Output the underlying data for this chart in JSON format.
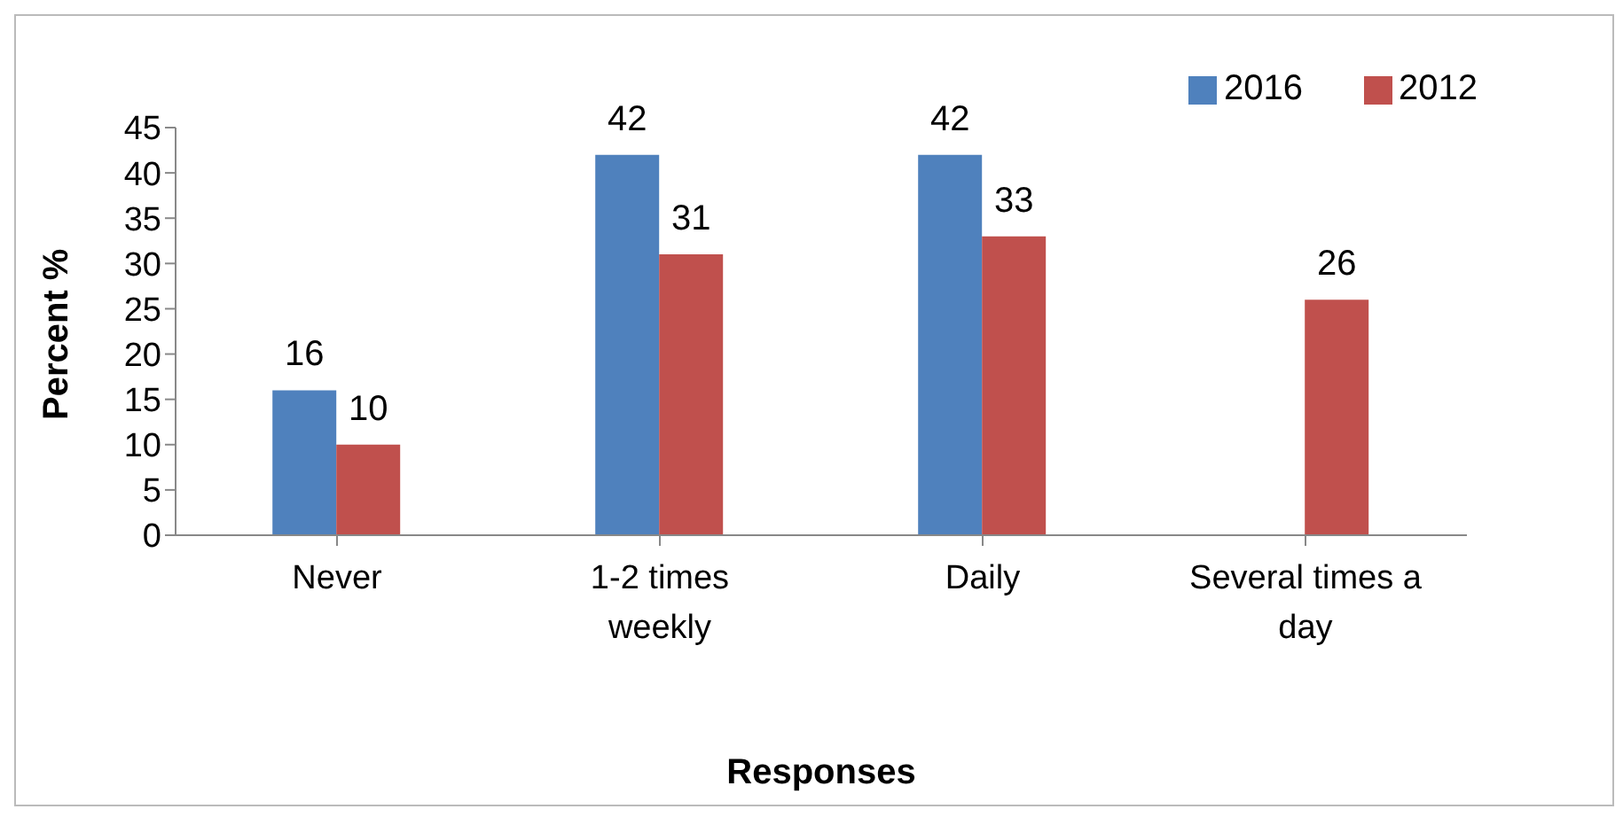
{
  "chart_data": {
    "type": "bar",
    "xlabel": "Responses",
    "ylabel": "Percent %",
    "categories": [
      "Never",
      "1-2 times weekly",
      "Daily",
      "Several times a day"
    ],
    "series": [
      {
        "name": "2016",
        "color": "#4f81bd",
        "values": [
          16,
          42,
          42,
          null
        ]
      },
      {
        "name": "2012",
        "color": "#c0504d",
        "values": [
          10,
          31,
          33,
          26
        ]
      }
    ],
    "ylim": [
      0,
      45
    ],
    "yticks": [
      0,
      5,
      10,
      15,
      20,
      25,
      30,
      35,
      40,
      45
    ],
    "grid": false,
    "legend": "top right",
    "data_labels": true
  }
}
